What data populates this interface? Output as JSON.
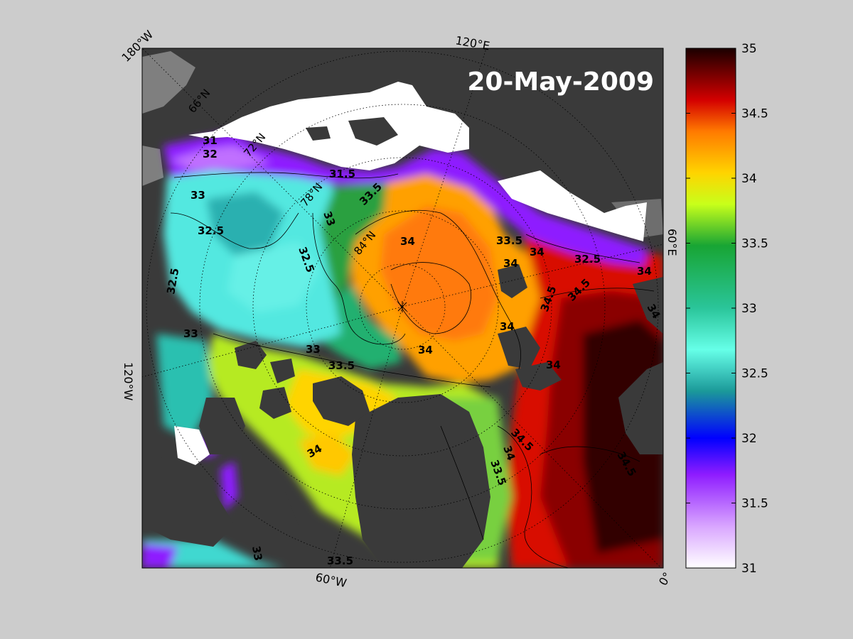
{
  "map": {
    "date_stamp": "20-May-2009",
    "longitude_labels": [
      "180°W",
      "120°E",
      "60°E",
      "0°",
      "60°W",
      "120°W"
    ],
    "latitude_labels": [
      "66°N",
      "72°N",
      "78°N",
      "84°N"
    ],
    "contour_labels": [
      "31",
      "31.5",
      "32",
      "32.5",
      "33",
      "33.5",
      "34",
      "34.5"
    ],
    "colors": {
      "background": "#cccccc",
      "land": "#3a3a3a",
      "land_edge": "#7f7f7f",
      "sea_ice": "#ffffff",
      "frame": "#000000"
    }
  },
  "colorbar": {
    "min": 31,
    "max": 35,
    "ticks": [
      "31",
      "31.5",
      "32",
      "32.5",
      "33",
      "33.5",
      "34",
      "34.5",
      "35"
    ],
    "stops": [
      "#ffffff",
      "#d9a6ff",
      "#8e1cff",
      "#0000ff",
      "#1b9999",
      "#66ffe8",
      "#2ac59a",
      "#18a534",
      "#c8ff1a",
      "#ffd400",
      "#ff7a00",
      "#d40000",
      "#1a0000"
    ]
  }
}
